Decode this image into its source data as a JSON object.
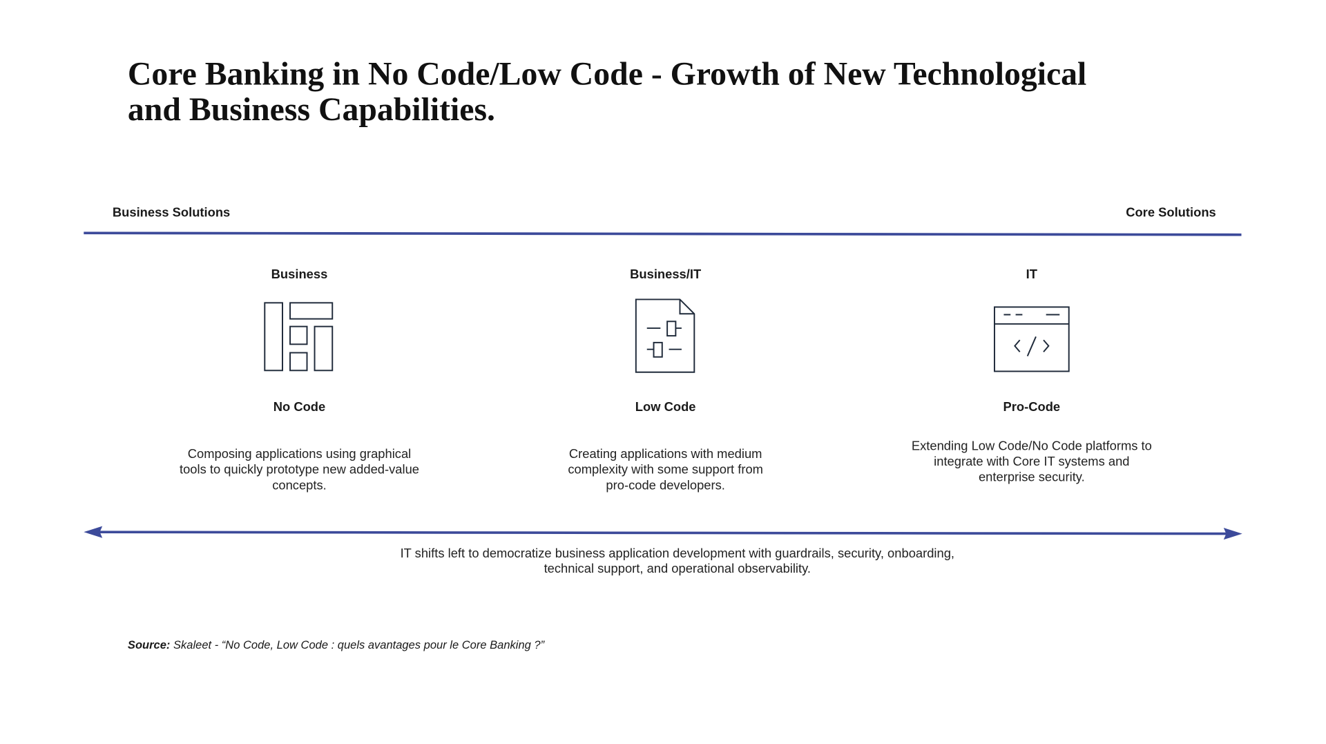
{
  "title": [
    "Core Banking in No Code/Low Code - Growth of New Technological",
    "and Business Capabilities."
  ],
  "left_label": "Business Solutions",
  "right_label": "Core Solutions",
  "columns": [
    {
      "role": "Business",
      "name": "No Code",
      "description": [
        "Composing applications using graphical",
        "tools to quickly prototype new added-value",
        "concepts."
      ]
    },
    {
      "role": "Business/IT",
      "name": "Low Code",
      "description": [
        "Creating applications with medium",
        "complexity with some support from",
        "pro-code developers."
      ]
    },
    {
      "role": "IT",
      "name": "Pro-Code",
      "description": [
        "Extending Low Code/No Code platforms to",
        "integrate with Core IT systems and",
        "enterprise security."
      ]
    }
  ],
  "bottom_note": [
    "IT shifts left to democratize business application development with guardrails, security, onboarding,",
    "technical support, and operational observability."
  ],
  "source": {
    "label": "Source:",
    "text": " Skaleet - “No Code, Low Code : quels avantages pour le Core Banking ?”"
  }
}
